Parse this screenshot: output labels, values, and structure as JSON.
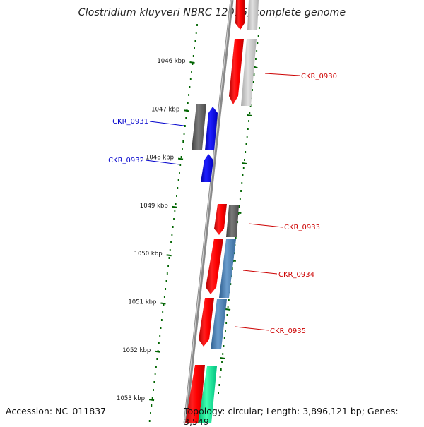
{
  "title": "Clostridium kluyveri NBRC 12016, complete genome",
  "footer": {
    "accession": "Accession: NC_011837",
    "summary": "Topology: circular; Length: 3,896,121 bp; Genes: 3,549"
  },
  "colors": {
    "forward_red": "#ff0000",
    "reverse_blue": "#0000ff",
    "dark_gray": "#5a5a5a",
    "light_gray": "#c0c0c0",
    "steel_blue": "#4682b4",
    "spring_green": "#00e090",
    "tick_green": "#006400",
    "backbone": "#8a8a8a"
  },
  "scale_ticks": [
    {
      "label": "1046 kbp",
      "position_kbp": 1046
    },
    {
      "label": "1047 kbp",
      "position_kbp": 1047
    },
    {
      "label": "1048 kbp",
      "position_kbp": 1048
    },
    {
      "label": "1049 kbp",
      "position_kbp": 1049
    },
    {
      "label": "1050 kbp",
      "position_kbp": 1050
    },
    {
      "label": "1051 kbp",
      "position_kbp": 1051
    },
    {
      "label": "1052 kbp",
      "position_kbp": 1052
    },
    {
      "label": "1053 kbp",
      "position_kbp": 1053
    }
  ],
  "gene_labels": [
    {
      "id": "CKR_0930",
      "side": "right",
      "color": "#cc0000"
    },
    {
      "id": "CKR_0931",
      "side": "left",
      "color": "#0000cc"
    },
    {
      "id": "CKR_0932",
      "side": "left",
      "color": "#0000cc"
    },
    {
      "id": "CKR_0933",
      "side": "right",
      "color": "#cc0000"
    },
    {
      "id": "CKR_0934",
      "side": "right",
      "color": "#cc0000"
    },
    {
      "id": "CKR_0935",
      "side": "right",
      "color": "#cc0000"
    }
  ]
}
